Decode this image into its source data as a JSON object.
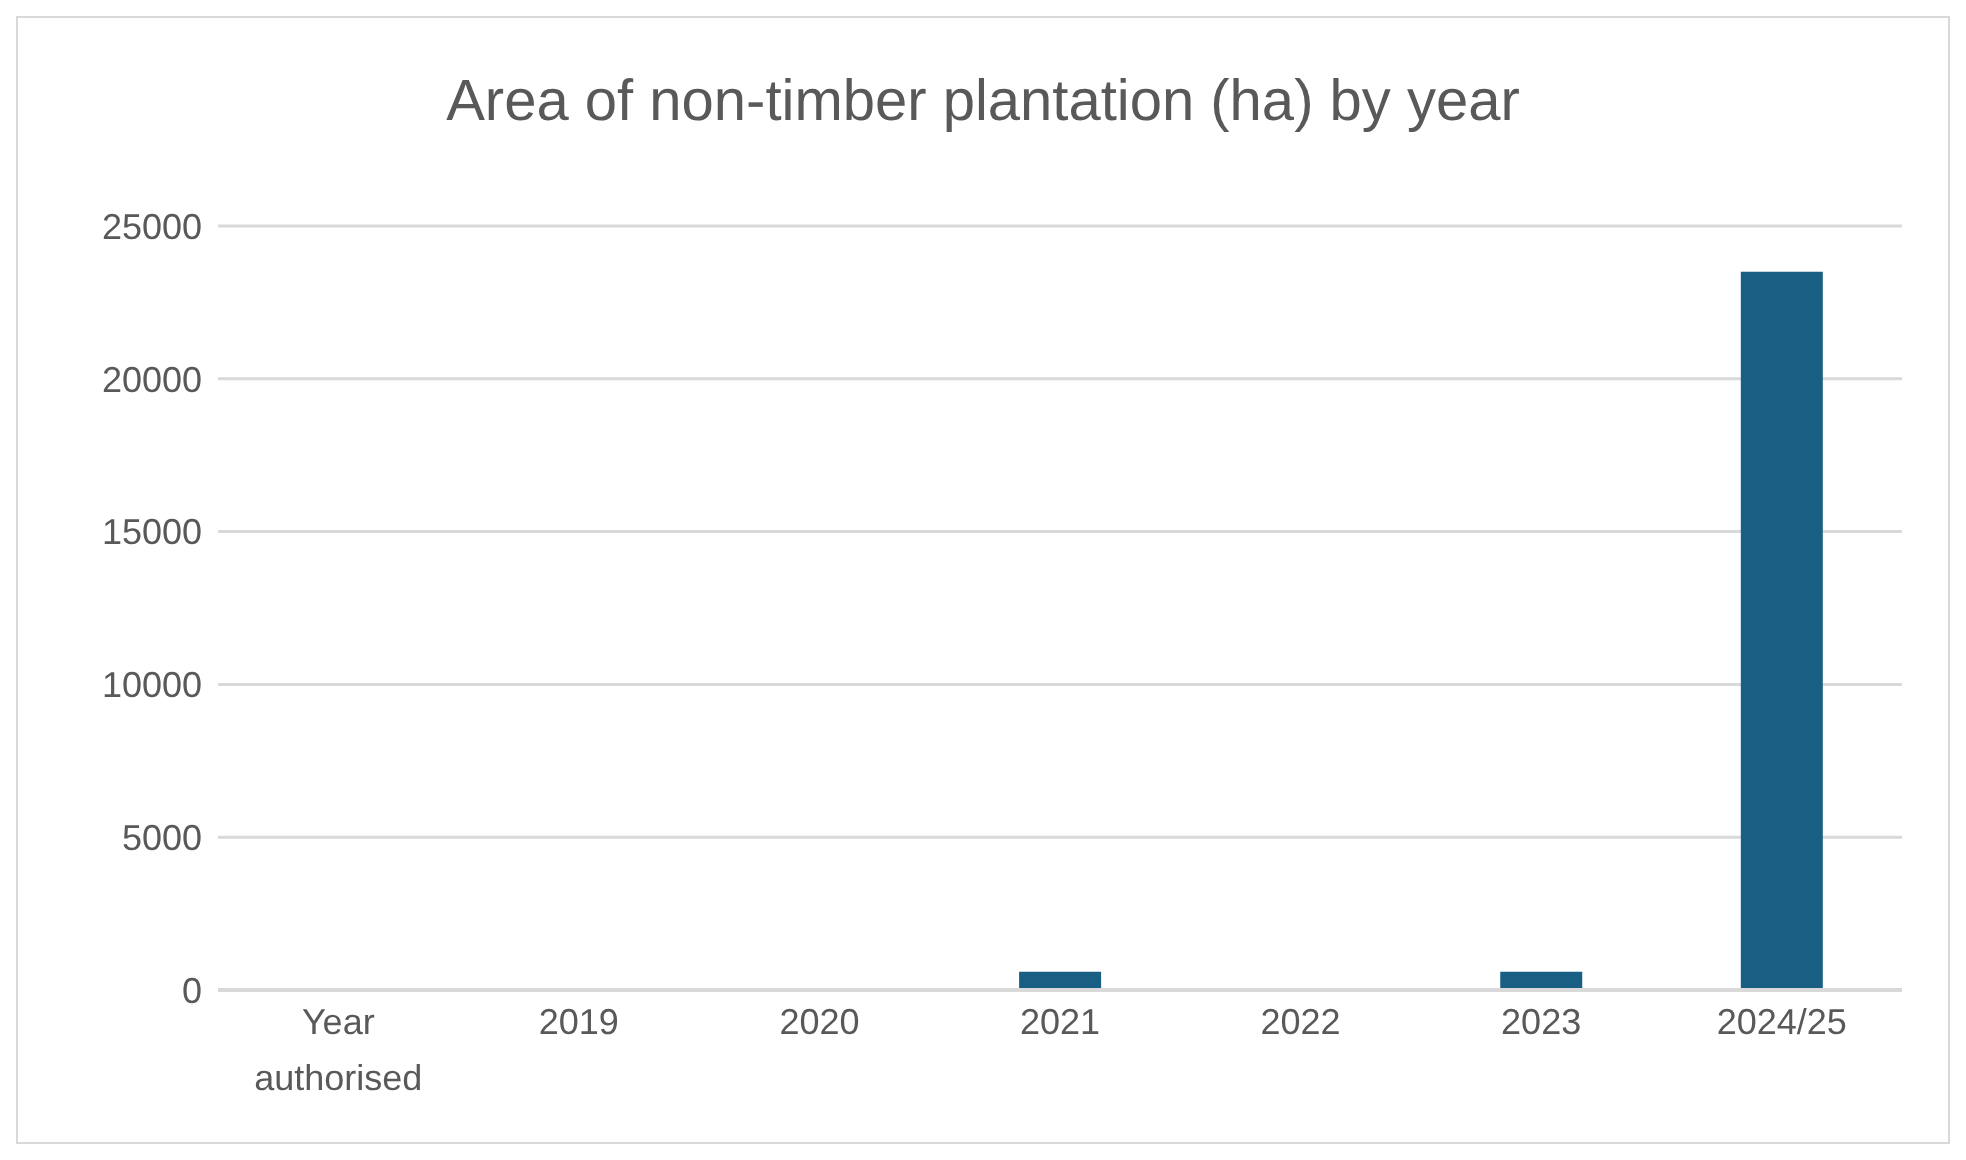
{
  "chart_data": {
    "type": "bar",
    "title": "Area of non-timber plantation (ha) by year",
    "categories": [
      "Year authorised",
      "2019",
      "2020",
      "2021",
      "2022",
      "2023",
      "2024/25"
    ],
    "values": [
      null,
      null,
      null,
      600,
      null,
      600,
      23500
    ],
    "color": "#195e83",
    "ylim": [
      0,
      25000
    ],
    "yticks": [
      0,
      5000,
      10000,
      15000,
      20000,
      25000
    ],
    "grid": "y"
  }
}
